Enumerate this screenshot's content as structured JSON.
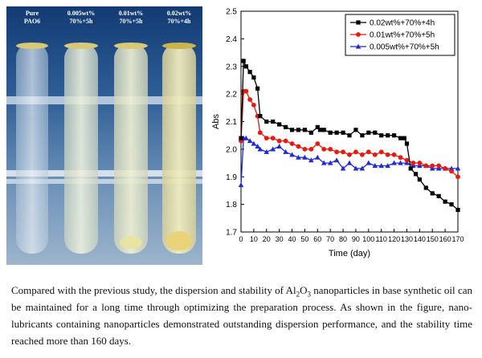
{
  "photo": {
    "tubes": [
      {
        "line1": "Pure",
        "line2": "PAO6"
      },
      {
        "line1": "0.005wt%",
        "line2": "70%+5h"
      },
      {
        "line1": "0.01wt%",
        "line2": "70%+5h"
      },
      {
        "line1": "0.02wt%",
        "line2": "70%+4h"
      }
    ]
  },
  "chart_data": {
    "type": "line",
    "xlabel": "Time (day)",
    "ylabel": "Abs",
    "xlim": [
      0,
      170
    ],
    "ylim": [
      1.7,
      2.5
    ],
    "xticks": [
      0,
      10,
      20,
      30,
      40,
      50,
      60,
      70,
      80,
      90,
      100,
      110,
      120,
      130,
      140,
      150,
      160,
      170
    ],
    "yticks": [
      1.7,
      1.8,
      1.9,
      2.0,
      2.1,
      2.2,
      2.3,
      2.4,
      2.5
    ],
    "legend_position": "top-right",
    "series": [
      {
        "name": "0.02wt%+70%+4h",
        "color": "#000000",
        "marker": "square",
        "x": [
          0,
          2,
          4,
          7,
          10,
          13,
          15,
          20,
          25,
          30,
          35,
          40,
          45,
          50,
          55,
          60,
          62,
          65,
          70,
          75,
          80,
          85,
          90,
          95,
          100,
          105,
          110,
          115,
          120,
          125,
          128,
          130,
          133,
          137,
          140,
          145,
          150,
          155,
          160,
          165,
          170
        ],
        "y": [
          2.04,
          2.32,
          2.3,
          2.28,
          2.26,
          2.22,
          2.12,
          2.1,
          2.1,
          2.09,
          2.08,
          2.07,
          2.07,
          2.07,
          2.06,
          2.08,
          2.07,
          2.07,
          2.06,
          2.06,
          2.06,
          2.05,
          2.07,
          2.05,
          2.06,
          2.06,
          2.05,
          2.05,
          2.05,
          2.04,
          2.04,
          2.02,
          1.93,
          1.91,
          1.89,
          1.86,
          1.84,
          1.83,
          1.81,
          1.8,
          1.78
        ]
      },
      {
        "name": "0.01wt%+70%+5h",
        "color": "#e8190e",
        "marker": "circle",
        "x": [
          0,
          2,
          4,
          7,
          10,
          13,
          15,
          20,
          25,
          30,
          35,
          40,
          45,
          50,
          55,
          60,
          65,
          70,
          75,
          80,
          85,
          90,
          95,
          100,
          105,
          110,
          115,
          120,
          125,
          130,
          135,
          140,
          145,
          150,
          155,
          160,
          165,
          170
        ],
        "y": [
          2.03,
          2.21,
          2.21,
          2.18,
          2.16,
          2.12,
          2.06,
          2.04,
          2.04,
          2.03,
          2.03,
          2.02,
          2.01,
          2.0,
          2.0,
          2.02,
          2.0,
          2.0,
          1.99,
          1.99,
          1.98,
          1.99,
          1.98,
          1.99,
          1.98,
          1.99,
          1.98,
          1.98,
          1.97,
          1.96,
          1.95,
          1.95,
          1.94,
          1.94,
          1.94,
          1.93,
          1.92,
          1.9
        ]
      },
      {
        "name": "0.005wt%+70%+5h",
        "color": "#1f2bd6",
        "marker": "triangle",
        "x": [
          0,
          2,
          4,
          7,
          10,
          13,
          15,
          20,
          25,
          30,
          35,
          40,
          45,
          50,
          55,
          60,
          65,
          70,
          75,
          80,
          85,
          90,
          95,
          100,
          105,
          110,
          115,
          120,
          125,
          130,
          135,
          140,
          145,
          150,
          155,
          160,
          165,
          170
        ],
        "y": [
          1.87,
          2.04,
          2.04,
          2.03,
          2.02,
          2.01,
          2.0,
          1.99,
          2.0,
          2.01,
          1.99,
          1.98,
          1.97,
          1.97,
          1.96,
          1.97,
          1.95,
          1.95,
          1.96,
          1.93,
          1.95,
          1.93,
          1.93,
          1.95,
          1.94,
          1.94,
          1.94,
          1.95,
          1.95,
          1.95,
          1.94,
          1.94,
          1.94,
          1.93,
          1.93,
          1.93,
          1.93,
          1.93
        ]
      }
    ]
  },
  "caption": {
    "before": "Compared with the previous study, the dispersion and stability of Al",
    "sub1": "2",
    "mid": "O",
    "sub2": "3",
    "after": " nanoparticles in base synthetic oil can be maintained for a long time through optimizing the preparation process. As shown in the figure, nano-lubricants containing nanoparticles demonstrated outstanding dispersion performance, and the stability time reached more than 160 days."
  }
}
